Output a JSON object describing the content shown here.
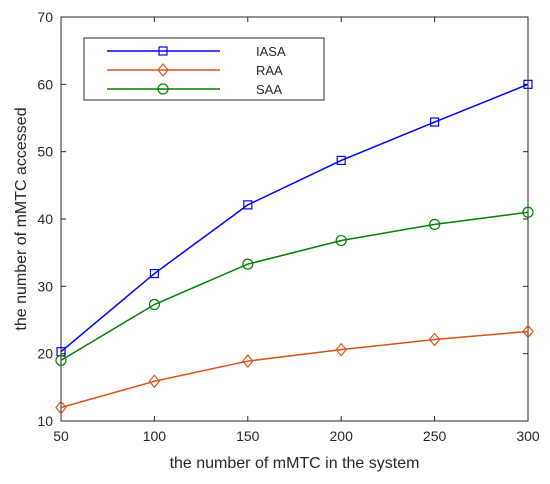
{
  "chart_data": {
    "type": "line",
    "title": "",
    "xlabel": "the number of mMTC in the system",
    "ylabel": "the number of mMTC accessed",
    "x": [
      50,
      100,
      150,
      200,
      250,
      300
    ],
    "xlim": [
      50,
      300
    ],
    "ylim": [
      10,
      70
    ],
    "xticks": [
      50,
      100,
      150,
      200,
      250,
      300
    ],
    "yticks": [
      10,
      20,
      30,
      40,
      50,
      60,
      70
    ],
    "grid": false,
    "legend_position": "top-left",
    "series": [
      {
        "name": "IASA",
        "values": [
          20.3,
          31.9,
          42.1,
          48.7,
          54.4,
          60.0
        ],
        "color": "#0000ff",
        "marker": "square"
      },
      {
        "name": "RAA",
        "values": [
          12.0,
          15.9,
          18.9,
          20.6,
          22.1,
          23.3
        ],
        "color": "#d95319",
        "marker": "diamond"
      },
      {
        "name": "SAA",
        "values": [
          19.0,
          27.3,
          33.3,
          36.8,
          39.2,
          41.0
        ],
        "color": "#008000",
        "marker": "circle"
      }
    ]
  }
}
